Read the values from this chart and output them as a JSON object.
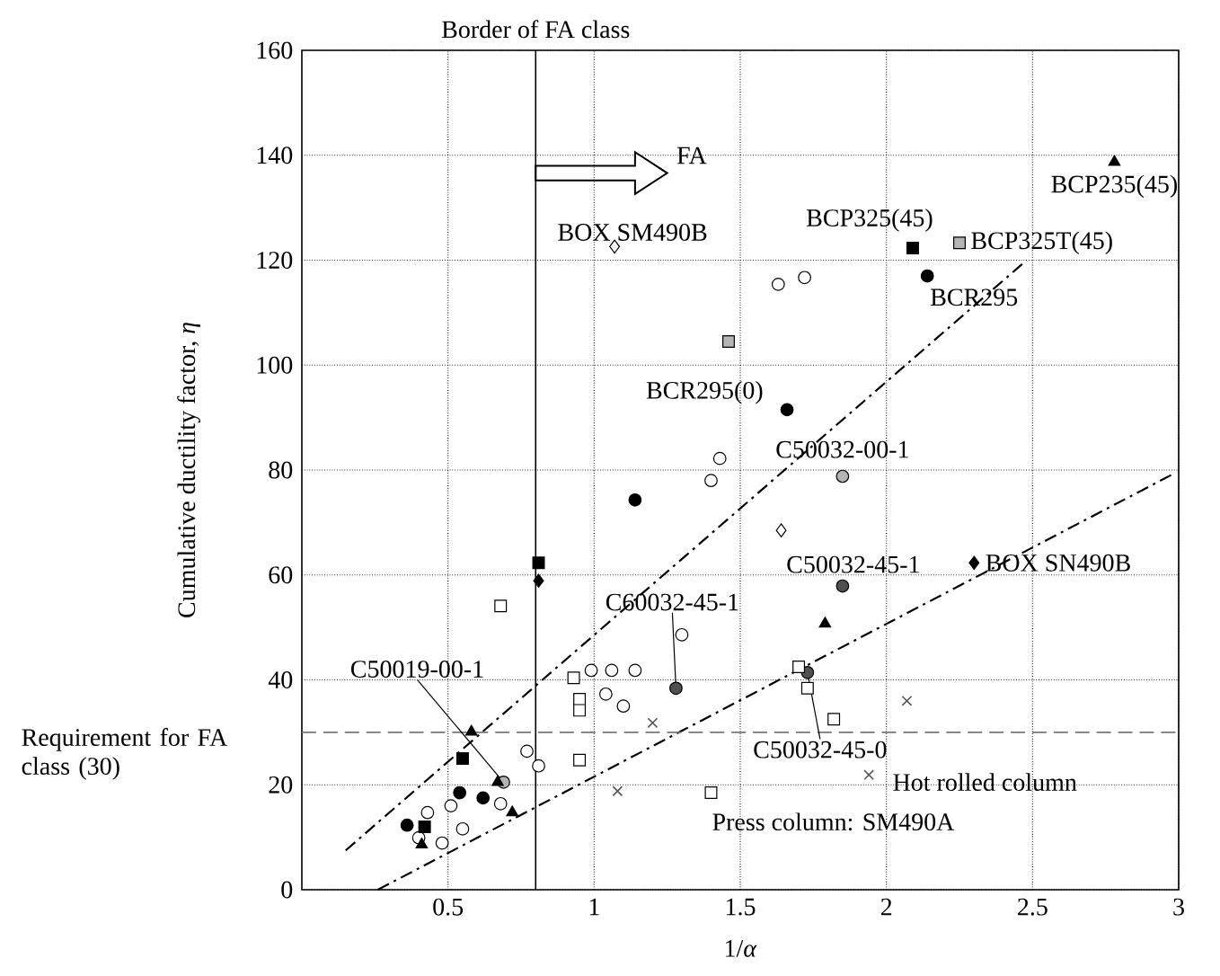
{
  "chart_data": {
    "type": "scatter",
    "xlabel": "1/*α*",
    "ylabel": "Cumulative ductility factor, *η*",
    "xlim": [
      0,
      3
    ],
    "ylim": [
      0,
      160
    ],
    "xticks": [
      0.5,
      1,
      1.5,
      2,
      2.5,
      3
    ],
    "yticks": [
      0,
      20,
      40,
      60,
      80,
      100,
      120,
      140,
      160
    ],
    "grid": true,
    "series": [
      {
        "color": "#000000",
        "marker": "circle",
        "x": [
          2.14,
          1.66,
          1.14,
          0.36,
          0.54,
          0.62
        ],
        "values": [
          117,
          91.5,
          74.3,
          12.3,
          18.5,
          17.5
        ]
      },
      {
        "color": "#ffffff",
        "marker": "circle",
        "x": [
          1.63,
          1.72,
          1.43,
          1.4,
          1.3,
          1.06,
          1.14,
          1.04,
          1.1,
          0.77,
          0.81,
          0.43,
          0.51,
          0.4,
          0.48,
          0.55,
          0.68,
          0.99
        ],
        "values": [
          115.4,
          116.7,
          82.2,
          78,
          48.6,
          41.8,
          41.8,
          37.3,
          35,
          26.4,
          23.6,
          14.7,
          16,
          9.9,
          8.9,
          11.6,
          16.4,
          41.8
        ]
      },
      {
        "color": "#b4b4b4",
        "marker": "circle",
        "x": [
          0.69,
          1.85
        ],
        "values": [
          20.5,
          78.8
        ]
      },
      {
        "color": "#505050",
        "marker": "circle",
        "x": [
          1.28,
          1.85,
          1.73
        ],
        "values": [
          38.4,
          57.9,
          41.4
        ]
      },
      {
        "color": "#000000",
        "marker": "square",
        "x": [
          2.09,
          0.81,
          0.55,
          0.42
        ],
        "values": [
          122.3,
          62.3,
          25,
          12
        ]
      },
      {
        "color": "#b4b4b4",
        "marker": "square",
        "x": [
          1.46,
          2.25
        ],
        "values": [
          104.5,
          123.3
        ]
      },
      {
        "color": "#ffffff",
        "marker": "square",
        "x": [
          0.68,
          0.93,
          0.95,
          0.95,
          0.95,
          1.7,
          1.73,
          1.82,
          1.4
        ],
        "values": [
          54.1,
          40.4,
          36.3,
          34.2,
          24.7,
          42.5,
          38.4,
          32.5,
          18.5
        ]
      },
      {
        "color": "#000000",
        "marker": "triangle",
        "x": [
          2.78,
          1.79,
          0.58,
          0.67,
          0.72,
          0.41
        ],
        "values": [
          138.7,
          50.7,
          30.1,
          20.5,
          14.7,
          8.6
        ]
      },
      {
        "color": "#000000",
        "marker": "diamond",
        "x": [
          0.81,
          2.3
        ],
        "values": [
          58.9,
          62.3
        ]
      },
      {
        "color": "#ffffff",
        "marker": "diamond",
        "x": [
          1.07,
          1.64
        ],
        "values": [
          122.6,
          68.5
        ]
      },
      {
        "color": "#555555",
        "marker": "cross",
        "x": [
          1.2,
          1.08,
          2.07,
          1.94
        ],
        "values": [
          31.8,
          18.8,
          36,
          21.9
        ]
      },
      {
        "type": "line",
        "color": "#000000",
        "line_style": "dashdot",
        "x": [
          0.15,
          2.48
        ],
        "values": [
          7.5,
          120
        ]
      },
      {
        "type": "line",
        "color": "#000000",
        "line_style": "dashdot",
        "x": [
          0.26,
          2.99
        ],
        "values": [
          0,
          79.5
        ]
      }
    ],
    "ref_lines": [
      {
        "axis": "x",
        "value": 0.8,
        "label": "Border of FA class",
        "color": "#000000",
        "line_style": "solid"
      },
      {
        "axis": "y",
        "value": 30,
        "label": "Requirement for FA class (30)",
        "color": "#777777",
        "line_style": "dashed"
      }
    ],
    "annotations": [
      "FA",
      {
        "text": "BOX SM490B",
        "x": 1.07,
        "y": 122.6
      },
      {
        "text": "BCP325(45)",
        "x": 2.09,
        "y": 122.3
      },
      {
        "text": "BCP325T(45)",
        "x": 2.25,
        "y": 123.3
      },
      {
        "text": "BCP235(45)",
        "x": 2.78,
        "y": 138.7
      },
      {
        "text": "BCR295",
        "x": 2.14,
        "y": 117
      },
      {
        "text": "BCR295(0)",
        "x": 1.66,
        "y": 91.5
      },
      {
        "text": "C50032-00-1",
        "x": 1.85,
        "y": 78.8
      },
      {
        "text": "C50032-45-1",
        "x": 1.85,
        "y": 57.9
      },
      {
        "text": "BOX SN490B",
        "x": 2.3,
        "y": 62.3
      },
      {
        "text": "C60032-45-1",
        "x": 1.28,
        "y": 38.4
      },
      {
        "text": "C50019-00-1",
        "x": 0.69,
        "y": 20.5
      },
      {
        "text": "C50032-45-0",
        "x": 1.73,
        "y": 41.4
      },
      {
        "text": "Hot rolled column",
        "x": 1.94,
        "y": 21.9
      },
      {
        "text": "Press column: SM490A",
        "x": 1.4,
        "y": 18.5
      }
    ]
  }
}
